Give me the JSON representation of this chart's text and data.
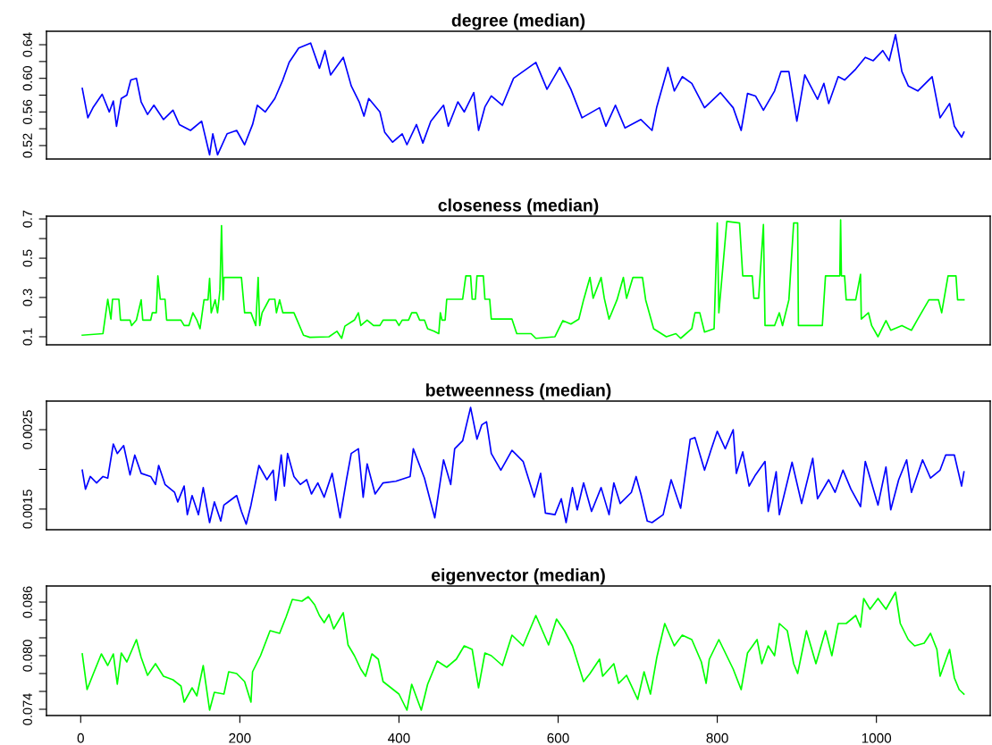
{
  "chart_data": [
    {
      "type": "line",
      "title": "degree (median)",
      "color": "#0000ff",
      "xlim": [
        -43,
        1143
      ],
      "ylim": [
        0.504,
        0.656
      ],
      "tick_labels": "y",
      "yticks": [
        0.52,
        {
          "value": 0.54,
          "label": null
        },
        0.56,
        {
          "value": 0.58,
          "label": null
        },
        {
          "value": 0.6,
          "label": "0.60"
        },
        {
          "value": 0.62,
          "label": null
        },
        0.64
      ],
      "x": [
        2,
        9,
        16,
        27,
        36,
        41,
        45,
        51,
        58,
        63,
        70,
        76,
        84,
        92,
        104,
        116,
        124,
        138,
        152,
        162,
        166,
        172,
        184,
        196,
        206,
        216,
        222,
        232,
        244,
        254,
        262,
        274,
        289,
        300,
        307,
        314,
        330,
        340,
        350,
        356,
        362,
        376,
        382,
        392,
        404,
        410,
        422,
        430,
        440,
        456,
        462,
        474,
        482,
        494,
        500,
        508,
        516,
        530,
        544,
        572,
        586,
        602,
        616,
        630,
        652,
        660,
        672,
        684,
        704,
        718,
        724,
        738,
        746,
        756,
        768,
        784,
        804,
        820,
        830,
        838,
        848,
        858,
        872,
        880,
        890,
        900,
        910,
        926,
        934,
        940,
        952,
        960,
        974,
        986,
        996,
        1008,
        1016,
        1024,
        1032,
        1040,
        1052,
        1070,
        1080,
        1092,
        1098,
        1107,
        1110
      ],
      "values": [
        0.588,
        0.553,
        0.566,
        0.581,
        0.56,
        0.573,
        0.543,
        0.576,
        0.58,
        0.598,
        0.6,
        0.572,
        0.557,
        0.568,
        0.551,
        0.562,
        0.545,
        0.538,
        0.549,
        0.509,
        0.534,
        0.509,
        0.534,
        0.538,
        0.521,
        0.545,
        0.568,
        0.56,
        0.576,
        0.598,
        0.619,
        0.636,
        0.642,
        0.612,
        0.633,
        0.604,
        0.625,
        0.591,
        0.572,
        0.555,
        0.576,
        0.56,
        0.536,
        0.524,
        0.534,
        0.521,
        0.545,
        0.523,
        0.549,
        0.568,
        0.543,
        0.572,
        0.56,
        0.583,
        0.538,
        0.566,
        0.579,
        0.568,
        0.6,
        0.619,
        0.587,
        0.613,
        0.587,
        0.553,
        0.565,
        0.543,
        0.568,
        0.541,
        0.551,
        0.538,
        0.566,
        0.613,
        0.585,
        0.602,
        0.594,
        0.565,
        0.583,
        0.565,
        0.538,
        0.582,
        0.579,
        0.562,
        0.585,
        0.608,
        0.608,
        0.549,
        0.604,
        0.575,
        0.594,
        0.57,
        0.602,
        0.598,
        0.611,
        0.625,
        0.621,
        0.633,
        0.621,
        0.652,
        0.608,
        0.591,
        0.585,
        0.602,
        0.553,
        0.57,
        0.543,
        0.53,
        0.536
      ]
    },
    {
      "type": "line",
      "title": "closeness (median)",
      "color": "#00ff00",
      "xlim": [
        -43,
        1143
      ],
      "ylim": [
        0.059,
        0.714
      ],
      "tick_labels": "y",
      "yticks": [
        0.1,
        {
          "value": 0.2,
          "label": null
        },
        0.3,
        {
          "value": 0.4,
          "label": null
        },
        0.5,
        {
          "value": 0.6,
          "label": null
        },
        0.7
      ],
      "x": [
        2,
        28,
        34,
        38,
        40,
        48,
        50,
        62,
        64,
        70,
        76,
        78,
        88,
        90,
        95,
        97,
        100,
        106,
        108,
        126,
        130,
        136,
        141,
        146,
        150,
        155,
        160,
        162,
        164,
        169,
        172,
        175,
        177,
        179,
        180,
        202,
        206,
        214,
        220,
        223,
        225,
        228,
        237,
        244,
        246,
        250,
        254,
        268,
        272,
        280,
        288,
        312,
        322,
        328,
        332,
        344,
        349,
        352,
        360,
        368,
        376,
        380,
        396,
        400,
        404,
        412,
        416,
        422,
        426,
        432,
        436,
        444,
        450,
        452,
        454,
        458,
        460,
        480,
        484,
        490,
        492,
        496,
        498,
        506,
        508,
        514,
        516,
        542,
        548,
        566,
        572,
        596,
        606,
        616,
        626,
        632,
        640,
        644,
        654,
        658,
        664,
        674,
        682,
        686,
        694,
        706,
        710,
        720,
        736,
        748,
        754,
        768,
        772,
        778,
        784,
        796,
        800,
        802,
        812,
        828,
        832,
        844,
        846,
        852,
        858,
        860,
        872,
        878,
        882,
        890,
        896,
        901,
        902,
        932,
        936,
        954,
        955,
        956,
        960,
        962,
        974,
        980,
        981,
        990,
        994,
        1002,
        1012,
        1018,
        1032,
        1044,
        1052,
        1066,
        1078,
        1082,
        1090,
        1100,
        1102,
        1110
      ],
      "values": [
        0.108,
        0.116,
        0.291,
        0.19,
        0.291,
        0.291,
        0.185,
        0.185,
        0.157,
        0.185,
        0.288,
        0.185,
        0.185,
        0.222,
        0.222,
        0.41,
        0.291,
        0.291,
        0.185,
        0.185,
        0.157,
        0.157,
        0.222,
        0.185,
        0.141,
        0.288,
        0.288,
        0.397,
        0.222,
        0.288,
        0.222,
        0.337,
        0.666,
        0.288,
        0.402,
        0.402,
        0.222,
        0.222,
        0.157,
        0.402,
        0.157,
        0.222,
        0.291,
        0.291,
        0.222,
        0.288,
        0.222,
        0.222,
        0.185,
        0.108,
        0.097,
        0.1,
        0.128,
        0.092,
        0.154,
        0.185,
        0.222,
        0.157,
        0.185,
        0.157,
        0.157,
        0.185,
        0.185,
        0.157,
        0.185,
        0.185,
        0.222,
        0.222,
        0.185,
        0.185,
        0.141,
        0.128,
        0.116,
        0.222,
        0.185,
        0.185,
        0.291,
        0.291,
        0.41,
        0.41,
        0.291,
        0.291,
        0.41,
        0.41,
        0.291,
        0.291,
        0.19,
        0.19,
        0.116,
        0.116,
        0.092,
        0.1,
        0.182,
        0.165,
        0.19,
        0.288,
        0.402,
        0.296,
        0.402,
        0.296,
        0.19,
        0.288,
        0.402,
        0.296,
        0.402,
        0.402,
        0.288,
        0.141,
        0.1,
        0.116,
        0.092,
        0.141,
        0.222,
        0.222,
        0.124,
        0.141,
        0.679,
        0.222,
        0.687,
        0.679,
        0.41,
        0.41,
        0.296,
        0.296,
        0.671,
        0.157,
        0.157,
        0.222,
        0.157,
        0.288,
        0.679,
        0.679,
        0.157,
        0.157,
        0.41,
        0.41,
        0.695,
        0.41,
        0.41,
        0.288,
        0.288,
        0.418,
        0.19,
        0.222,
        0.157,
        0.1,
        0.182,
        0.133,
        0.157,
        0.133,
        0.19,
        0.288,
        0.288,
        0.222,
        0.41,
        0.41,
        0.288,
        0.288
      ]
    },
    {
      "type": "line",
      "title": "betweenness (median)",
      "color": "#0000ff",
      "xlim": [
        -43,
        1143
      ],
      "ylim": [
        0.00124,
        0.00286
      ],
      "tick_labels": "y",
      "yticks": [
        0.0015,
        {
          "value": 0.002,
          "label": null
        },
        0.0025
      ],
      "x": [
        2,
        6,
        12,
        20,
        28,
        34,
        41,
        46,
        54,
        62,
        68,
        76,
        88,
        94,
        98,
        106,
        118,
        122,
        130,
        134,
        140,
        148,
        154,
        162,
        168,
        176,
        180,
        196,
        202,
        208,
        214,
        224,
        234,
        242,
        245,
        252,
        256,
        260,
        268,
        276,
        284,
        290,
        298,
        306,
        316,
        326,
        334,
        340,
        349,
        355,
        360,
        370,
        380,
        396,
        414,
        418,
        432,
        445,
        456,
        465,
        470,
        480,
        490,
        498,
        504,
        510,
        516,
        528,
        542,
        556,
        570,
        578,
        584,
        596,
        604,
        610,
        618,
        624,
        632,
        642,
        654,
        664,
        670,
        678,
        692,
        698,
        704,
        712,
        718,
        732,
        742,
        754,
        766,
        772,
        784,
        792,
        800,
        810,
        820,
        824,
        832,
        840,
        848,
        860,
        864,
        874,
        878,
        894,
        906,
        920,
        926,
        940,
        948,
        958,
        968,
        980,
        986,
        1002,
        1012,
        1018,
        1028,
        1038,
        1044,
        1058,
        1068,
        1080,
        1087,
        1098,
        1107,
        1110
      ],
      "values": [
        0.00199,
        0.00175,
        0.00191,
        0.00183,
        0.00191,
        0.00189,
        0.00232,
        0.0022,
        0.0023,
        0.00193,
        0.00218,
        0.00195,
        0.00191,
        0.00181,
        0.00205,
        0.00181,
        0.00171,
        0.00159,
        0.00179,
        0.00143,
        0.00167,
        0.00143,
        0.00177,
        0.00133,
        0.00159,
        0.00135,
        0.00155,
        0.00167,
        0.00147,
        0.00131,
        0.00155,
        0.00205,
        0.00187,
        0.00199,
        0.00161,
        0.00218,
        0.00179,
        0.0022,
        0.00191,
        0.00181,
        0.00187,
        0.00169,
        0.00183,
        0.00165,
        0.00195,
        0.00139,
        0.00187,
        0.0022,
        0.00226,
        0.00165,
        0.00207,
        0.00169,
        0.00183,
        0.00185,
        0.00191,
        0.00226,
        0.00189,
        0.00139,
        0.00212,
        0.00181,
        0.00226,
        0.00236,
        0.00278,
        0.00238,
        0.00256,
        0.0026,
        0.0022,
        0.00199,
        0.00224,
        0.0021,
        0.00165,
        0.00195,
        0.00145,
        0.00143,
        0.00163,
        0.00133,
        0.00177,
        0.00149,
        0.00183,
        0.00147,
        0.00177,
        0.00143,
        0.00183,
        0.00157,
        0.00171,
        0.00191,
        0.00169,
        0.00135,
        0.00133,
        0.00143,
        0.00187,
        0.00151,
        0.00238,
        0.0024,
        0.00199,
        0.00224,
        0.00248,
        0.00226,
        0.0025,
        0.00195,
        0.00222,
        0.00179,
        0.00193,
        0.0021,
        0.00147,
        0.00197,
        0.00143,
        0.00209,
        0.00157,
        0.00214,
        0.00163,
        0.00187,
        0.00171,
        0.00199,
        0.00175,
        0.00153,
        0.0021,
        0.00155,
        0.00203,
        0.00149,
        0.00187,
        0.00212,
        0.00171,
        0.00212,
        0.00189,
        0.00199,
        0.00218,
        0.00218,
        0.00179,
        0.00197
      ]
    },
    {
      "type": "line",
      "title": "eigenvector (median)",
      "color": "#00ff00",
      "xlim": [
        -43,
        1143
      ],
      "ylim": [
        0.0733,
        0.0878
      ],
      "xticks": [
        0,
        200,
        400,
        600,
        800,
        1000
      ],
      "yticks": [
        0.074,
        {
          "value": 0.076,
          "label": null
        },
        {
          "value": 0.078,
          "label": null
        },
        {
          "value": 0.08,
          "label": "0.080"
        },
        {
          "value": 0.082,
          "label": null
        },
        {
          "value": 0.084,
          "label": null
        },
        0.086
      ],
      "x": [
        2,
        8,
        16,
        26,
        34,
        41,
        46,
        51,
        58,
        70,
        76,
        84,
        94,
        104,
        116,
        126,
        130,
        140,
        146,
        154,
        162,
        168,
        180,
        186,
        196,
        206,
        214,
        216,
        226,
        238,
        250,
        258,
        266,
        278,
        286,
        294,
        300,
        306,
        312,
        318,
        330,
        336,
        344,
        352,
        358,
        366,
        374,
        380,
        390,
        400,
        410,
        416,
        428,
        436,
        448,
        460,
        472,
        482,
        492,
        500,
        508,
        516,
        530,
        542,
        556,
        572,
        588,
        598,
        608,
        618,
        632,
        640,
        652,
        656,
        670,
        676,
        686,
        700,
        708,
        716,
        724,
        734,
        746,
        756,
        768,
        780,
        786,
        790,
        802,
        820,
        830,
        838,
        850,
        856,
        864,
        872,
        878,
        888,
        896,
        901,
        912,
        924,
        936,
        944,
        952,
        962,
        974,
        980,
        984,
        992,
        1002,
        1012,
        1024,
        1030,
        1040,
        1048,
        1060,
        1068,
        1076,
        1080,
        1092,
        1098,
        1104,
        1110
      ],
      "values": [
        0.0802,
        0.0762,
        0.078,
        0.0802,
        0.0789,
        0.0802,
        0.0768,
        0.0803,
        0.0793,
        0.0818,
        0.0798,
        0.0778,
        0.0791,
        0.0777,
        0.0773,
        0.0766,
        0.0748,
        0.0764,
        0.0755,
        0.0789,
        0.0739,
        0.0759,
        0.0757,
        0.0782,
        0.078,
        0.0771,
        0.0748,
        0.0782,
        0.08,
        0.0828,
        0.0825,
        0.0843,
        0.0863,
        0.0861,
        0.0866,
        0.0857,
        0.0845,
        0.0837,
        0.0846,
        0.083,
        0.0848,
        0.0812,
        0.08,
        0.0785,
        0.0777,
        0.0802,
        0.0796,
        0.0771,
        0.0764,
        0.0757,
        0.0739,
        0.0768,
        0.0739,
        0.0768,
        0.0794,
        0.0787,
        0.0796,
        0.0811,
        0.0807,
        0.0764,
        0.0803,
        0.08,
        0.0789,
        0.0823,
        0.0811,
        0.0845,
        0.0812,
        0.0841,
        0.0828,
        0.0811,
        0.0771,
        0.078,
        0.0796,
        0.0777,
        0.0791,
        0.0769,
        0.0778,
        0.0751,
        0.0782,
        0.0757,
        0.0798,
        0.0836,
        0.0811,
        0.0823,
        0.0818,
        0.0793,
        0.0769,
        0.0796,
        0.0818,
        0.0785,
        0.0762,
        0.0803,
        0.0818,
        0.0791,
        0.0811,
        0.08,
        0.0836,
        0.0828,
        0.0791,
        0.078,
        0.0828,
        0.0791,
        0.0828,
        0.08,
        0.0836,
        0.0836,
        0.0845,
        0.0832,
        0.0864,
        0.0852,
        0.0864,
        0.0852,
        0.0871,
        0.0836,
        0.0818,
        0.0811,
        0.0814,
        0.0825,
        0.0807,
        0.0777,
        0.0807,
        0.0775,
        0.0762,
        0.0757
      ]
    }
  ]
}
